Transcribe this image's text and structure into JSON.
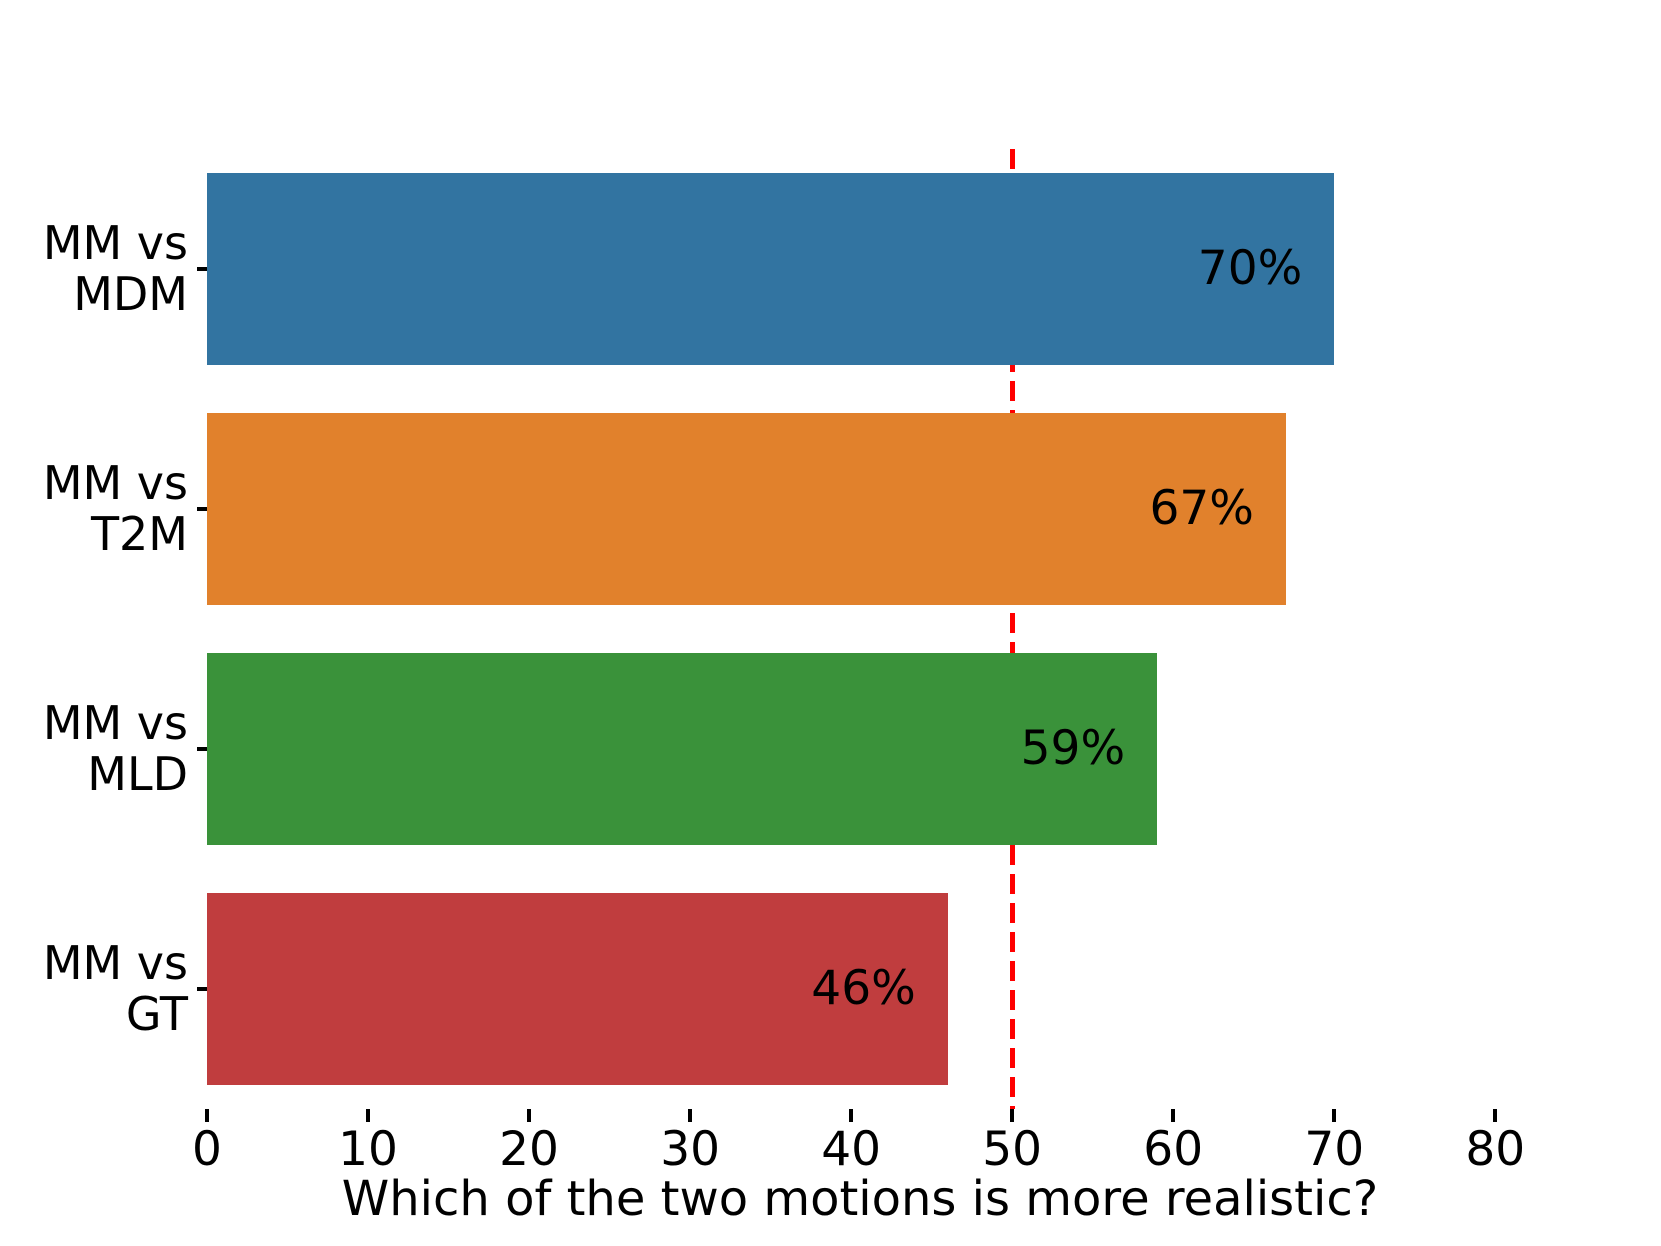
{
  "chart_data": {
    "type": "bar",
    "orientation": "horizontal",
    "title": "",
    "xlabel": "Which of the two motions is more realistic?",
    "ylabel": "",
    "categories": [
      "MM vs\nMDM",
      "MM vs\nT2M",
      "MM vs\nMLD",
      "MM vs\nGT"
    ],
    "values": [
      70,
      67,
      59,
      46
    ],
    "bar_labels": [
      "70%",
      "67%",
      "59%",
      "46%"
    ],
    "bar_colors": [
      "#3274a1",
      "#e1812c",
      "#3a923a",
      "#c03d3e"
    ],
    "x_tick_labels": [
      "0",
      "10",
      "20",
      "30",
      "40",
      "50",
      "60",
      "70",
      "80"
    ],
    "x_tick_values": [
      0,
      10,
      20,
      30,
      40,
      50,
      60,
      70,
      80
    ],
    "xlim": [
      0,
      81.1
    ],
    "grid": false,
    "legend": null,
    "reference_line": {
      "value": 50,
      "color": "#ff0000",
      "style": "dashed"
    }
  }
}
